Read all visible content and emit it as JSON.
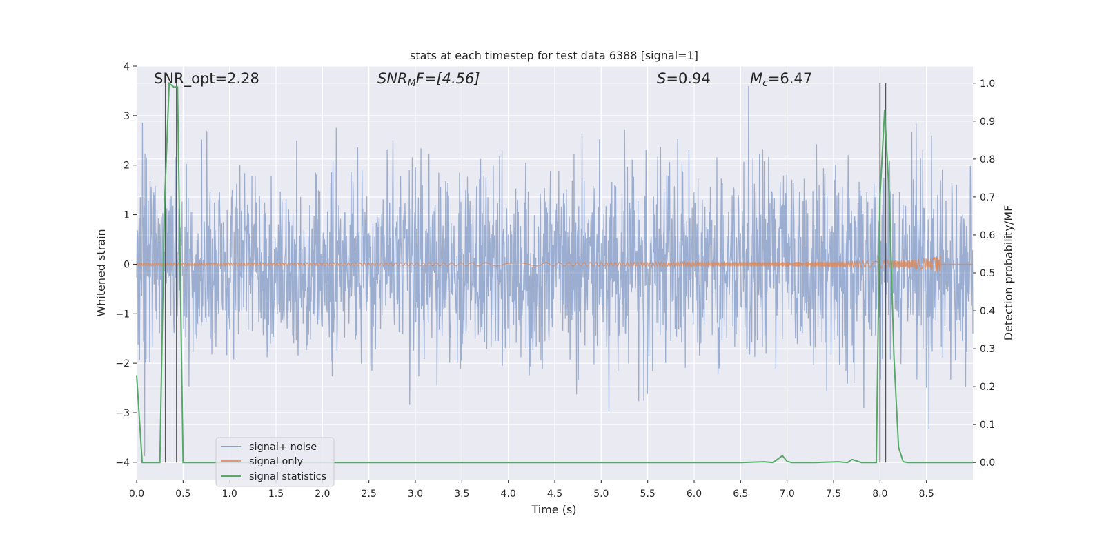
{
  "chart_data": {
    "type": "line",
    "title": "stats at each timestep for test data 6388 [signal=1]",
    "xlabel": "Time (s)",
    "ylabel": "Whitened strain",
    "y2label": "Detection probability/MF",
    "xlim": [
      0.0,
      9.0
    ],
    "ylim": [
      -4.35,
      4.0
    ],
    "y2lim": [
      -0.045,
      1.045
    ],
    "grid": true,
    "legend_position": "lower-left",
    "x_ticks": [
      "0.0",
      "0.5",
      "1.0",
      "1.5",
      "2.0",
      "2.5",
      "3.0",
      "3.5",
      "4.0",
      "4.5",
      "5.0",
      "5.5",
      "6.0",
      "6.5",
      "7.0",
      "7.5",
      "8.0",
      "8.5"
    ],
    "y_ticks": [
      "4",
      "3",
      "2",
      "1",
      "0",
      "−1",
      "−2",
      "−3",
      "−4"
    ],
    "y2_ticks": [
      "1.0",
      "0.9",
      "0.8",
      "0.7",
      "0.6",
      "0.5",
      "0.4",
      "0.3",
      "0.2",
      "0.1",
      "0.0"
    ],
    "annotations": {
      "snr_opt": "SNR_opt=2.28",
      "snr_mf_sym": "SNR",
      "snr_mf_sub": "M",
      "snr_mf_rest": "F=[4.56]",
      "s_sym": "S",
      "s_rest": "=0.94",
      "mc_sym": "M",
      "mc_sub": "c",
      "mc_rest": "=6.47"
    },
    "series": [
      {
        "name": "signal+ noise",
        "color": "#4c72b0",
        "kind": "strain noise, std≈1, peaks up to ≈3.6 / down to ≈−4.0"
      },
      {
        "name": "signal only",
        "color": "#dd8452",
        "kind": "chirp, amplitude grows to ≈0.2 at t≈8.65 s then ends"
      },
      {
        "name": "signal statistics",
        "color": "#55a868",
        "axis": "right",
        "x": [
          0.0,
          0.06,
          0.25,
          0.3,
          0.35,
          0.4,
          0.44,
          0.5,
          6.5,
          6.75,
          6.85,
          6.95,
          7.0,
          7.05,
          7.3,
          7.55,
          7.65,
          7.7,
          7.8,
          7.9,
          7.96,
          8.0,
          8.05,
          8.1,
          8.15,
          8.2,
          8.25,
          8.3,
          9.0
        ],
        "values": [
          0.23,
          0.0,
          0.0,
          0.68,
          1.0,
          0.99,
          0.99,
          0.0,
          0.0,
          0.002,
          0.0,
          0.018,
          0.003,
          0.0,
          0.0,
          0.002,
          0.0,
          0.008,
          0.0,
          0.0,
          0.0,
          0.7,
          0.93,
          0.7,
          0.28,
          0.04,
          0.002,
          0.0,
          0.0
        ]
      }
    ],
    "vertical_lines_x": [
      0.31,
      0.43,
      8.0,
      8.06
    ],
    "vertical_lines_color": "#555555"
  }
}
